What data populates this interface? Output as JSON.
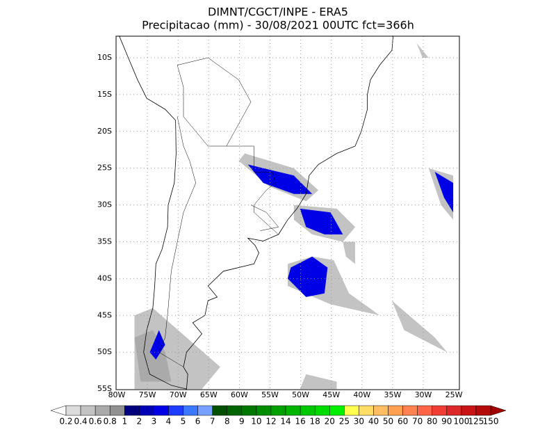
{
  "header": {
    "title": "DIMNT/CGCT/INPE -  ERA5",
    "subtitle": "Precipitacao (mm) - 30/08/2021 00UTC fct=366h"
  },
  "map": {
    "lat_labels": [
      "10S",
      "15S",
      "20S",
      "25S",
      "30S",
      "35S",
      "40S",
      "45S",
      "50S",
      "55S"
    ],
    "lon_labels": [
      "80W",
      "75W",
      "70W",
      "65W",
      "60W",
      "55W",
      "50W",
      "45W",
      "40W",
      "35W",
      "30W",
      "25W"
    ]
  },
  "colorbar": {
    "labels": [
      0.2,
      0.4,
      0.6,
      0.8,
      1,
      2,
      3,
      4,
      5,
      6,
      7,
      8,
      9,
      10,
      12,
      14,
      16,
      18,
      20,
      25,
      30,
      40,
      50,
      60,
      70,
      80,
      90,
      100,
      125,
      150
    ],
    "colors": [
      "#ffffff",
      "#dcdcdc",
      "#c3c3c3",
      "#aaaaaa",
      "#919191",
      "#00007d",
      "#0000b4",
      "#0000e6",
      "#1e3cff",
      "#3c78ff",
      "#78a0ff",
      "#005000",
      "#006400",
      "#007800",
      "#008c00",
      "#00a000",
      "#00b400",
      "#00c800",
      "#00dc00",
      "#00f000",
      "#ffff50",
      "#ffdc64",
      "#ffbe64",
      "#ffa050",
      "#ff8250",
      "#ff6446",
      "#f03c32",
      "#dc2828",
      "#c81414",
      "#b40a0a",
      "#a00000"
    ]
  }
}
